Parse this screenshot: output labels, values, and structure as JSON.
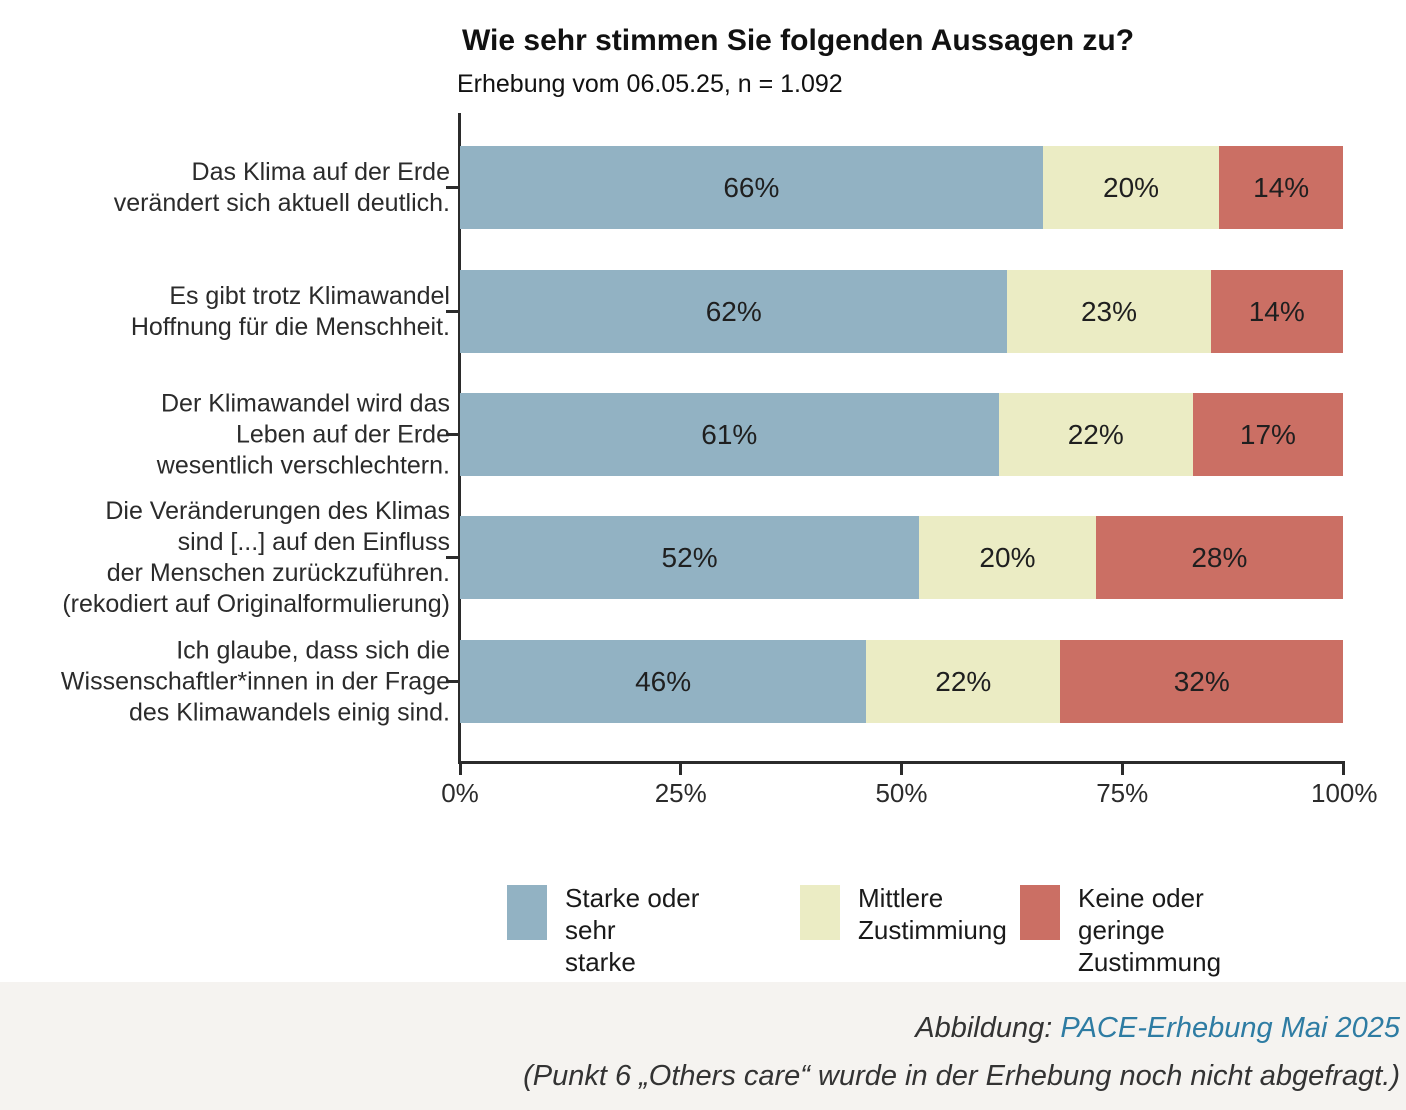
{
  "page": {
    "background": "#ffffff",
    "footer_background": "#f5f3f0"
  },
  "chart_data": {
    "type": "bar",
    "orientation": "horizontal",
    "stacked": true,
    "title": "Wie sehr stimmen Sie folgenden Aussagen zu?",
    "subtitle": "Erhebung vom 06.05.25, n = 1.092",
    "categories": [
      "Das Klima auf der Erde\nverändert sich aktuell deutlich.",
      "Es gibt trotz Klimawandel\nHoffnung für die Menschheit.",
      "Der Klimawandel wird das\nLeben auf der Erde\nwesentlich verschlechtern.",
      "Die Veränderungen des Klimas\nsind [...] auf den Einfluss\nder Menschen zurückzuführen.\n(rekodiert auf Originalformulierung)",
      "Ich glaube, dass sich die\nWissenschaftler*innen in der Frage\ndes Klimawandels einig sind."
    ],
    "series": [
      {
        "name": "Starke oder sehr starke Zustimmung",
        "legend_label": "Starke oder sehr\nstarke Zustimmung",
        "color": "#92b2c3",
        "values": [
          66,
          62,
          61,
          52,
          46
        ]
      },
      {
        "name": "Mittlere Zustimmiung",
        "legend_label": "Mittlere\nZustimmiung",
        "color": "#ebecc4",
        "values": [
          20,
          23,
          22,
          20,
          22
        ]
      },
      {
        "name": "Keine oder geringe Zustimmung",
        "legend_label": "Keine oder\ngeringe Zustimmung",
        "color": "#cb6f64",
        "values": [
          14,
          14,
          17,
          28,
          32
        ]
      }
    ],
    "value_suffix": "%",
    "x_ticks": [
      "0%",
      "25%",
      "50%",
      "75%",
      "100%"
    ],
    "xlim": [
      0,
      100
    ],
    "grid": false,
    "legend_position": "bottom"
  },
  "caption": {
    "prefix": "Abbildung: ",
    "link_text": "PACE-Erhebung Mai 2025",
    "link_color": "#2e7ca3",
    "note": "(Punkt 6 „Others care“ wurde in der Erhebung noch nicht abgefragt.)"
  }
}
